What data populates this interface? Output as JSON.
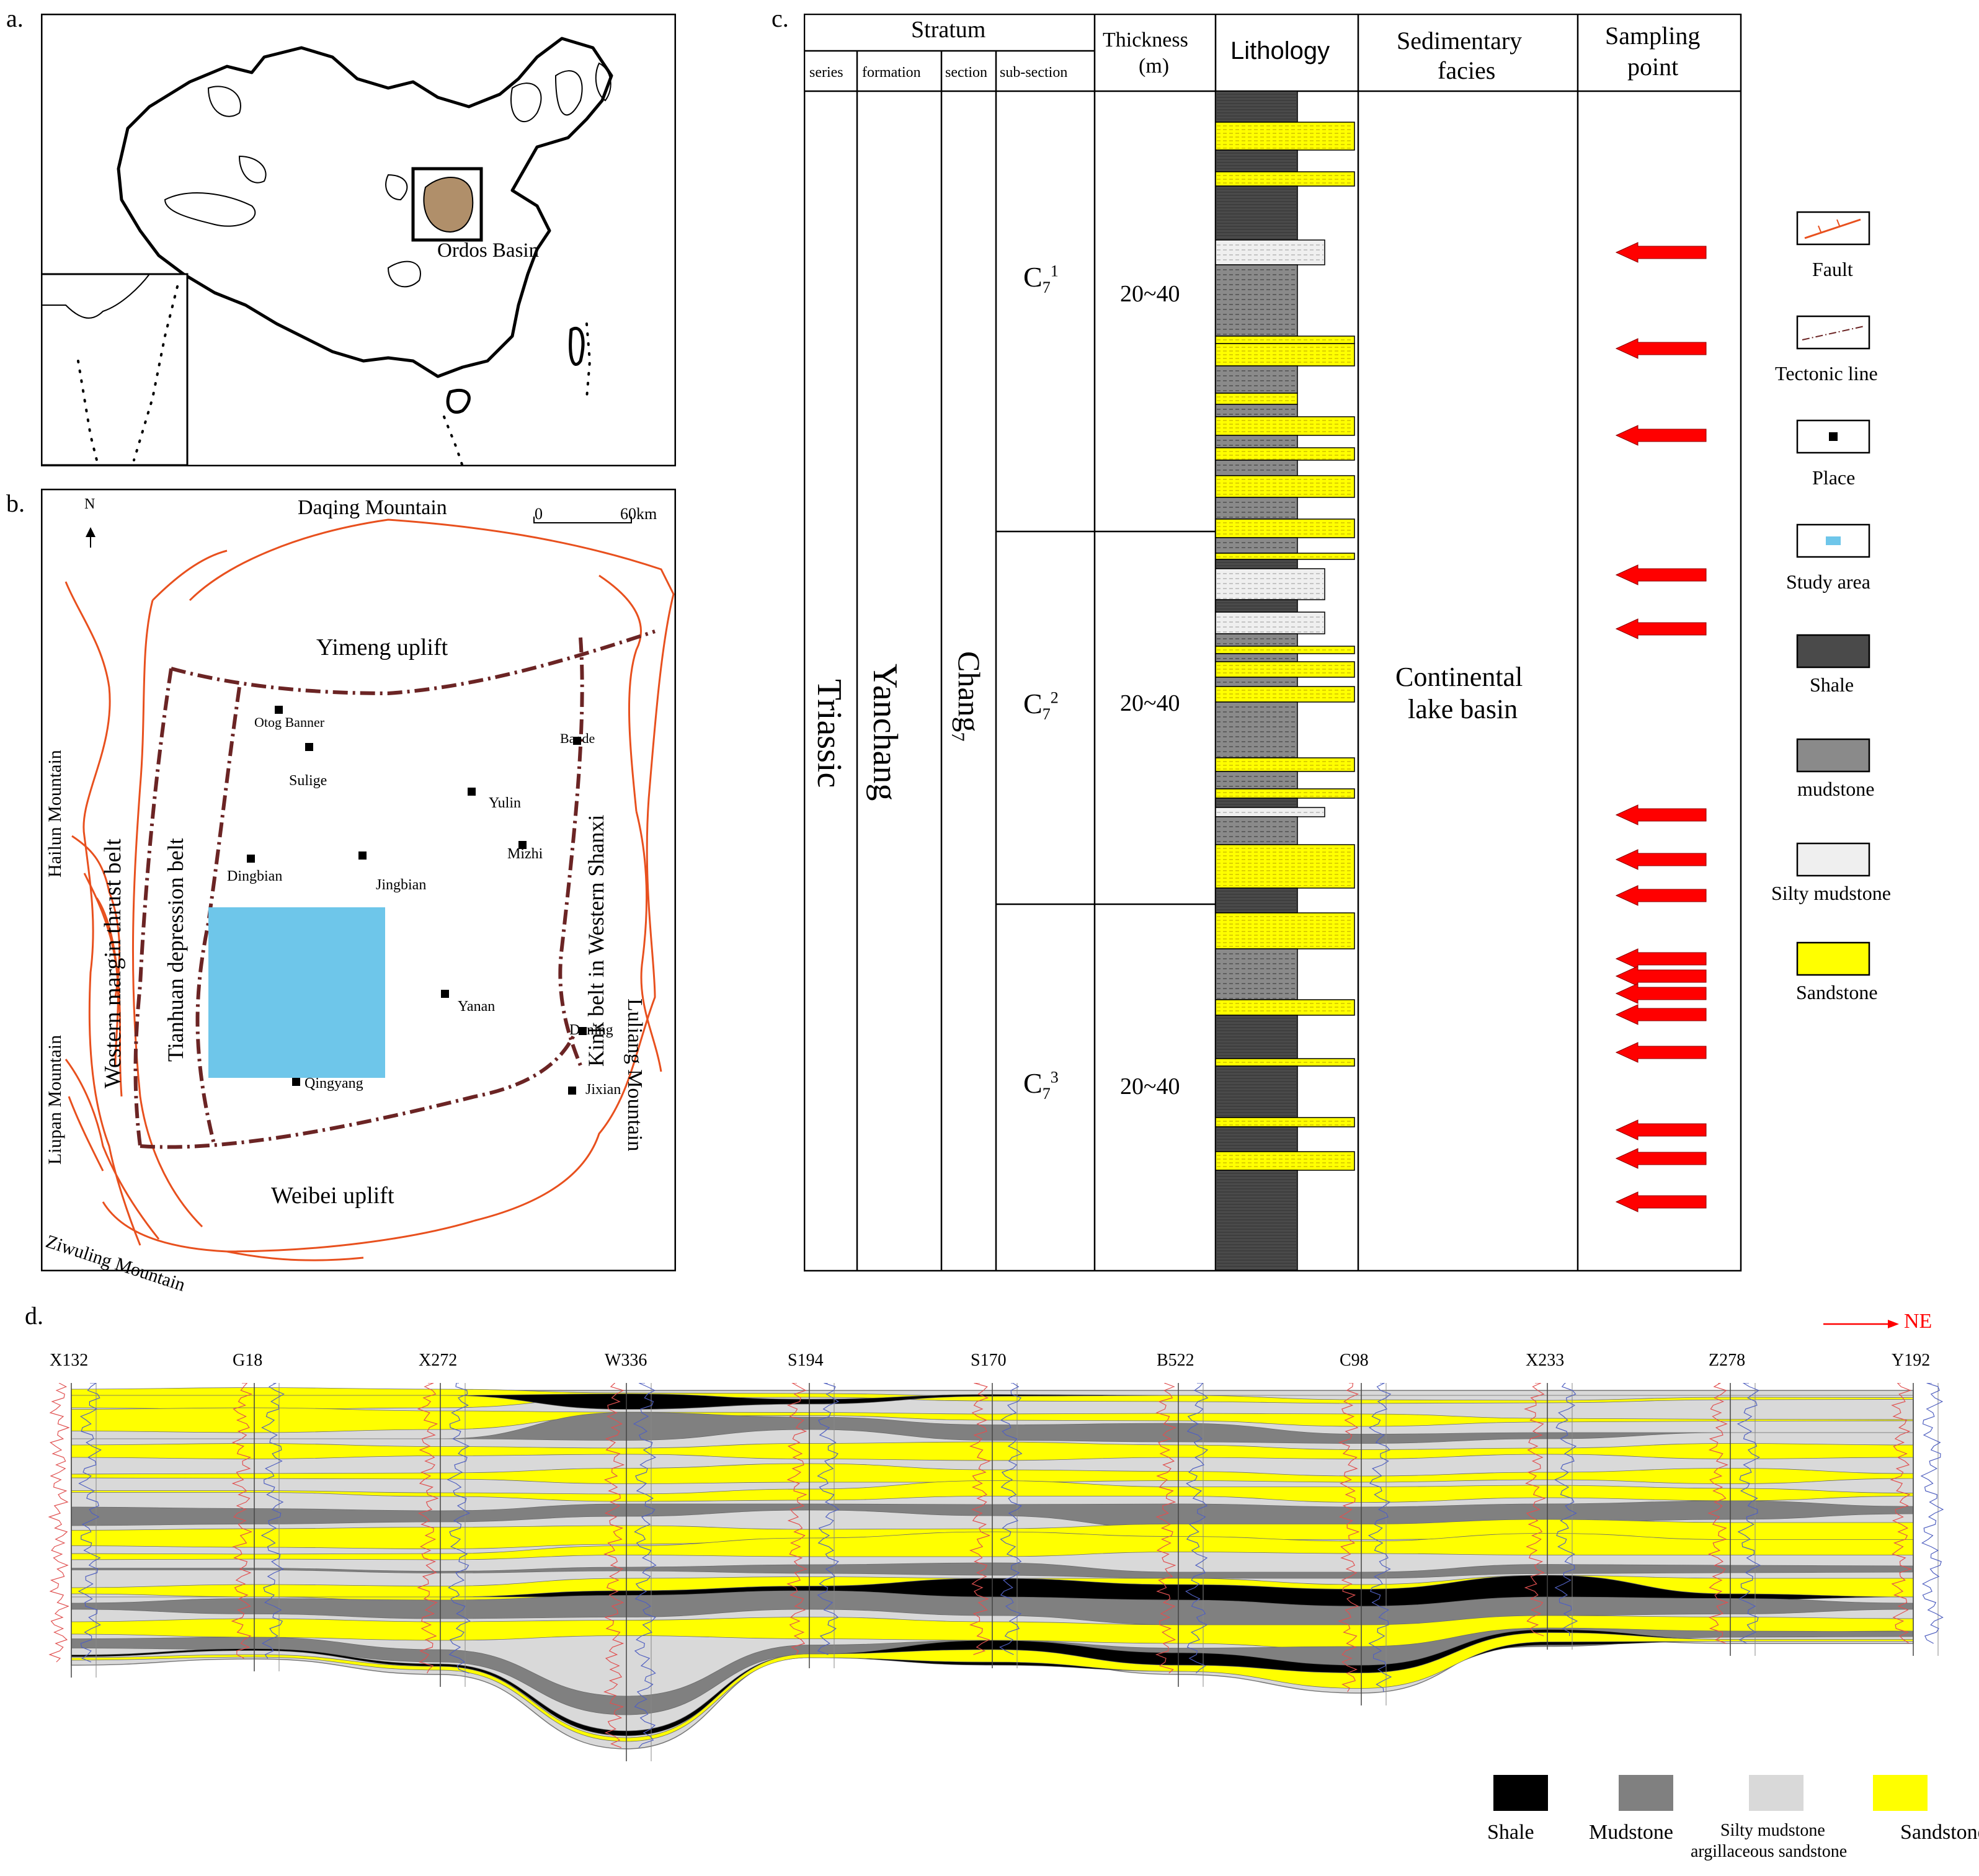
{
  "panels": {
    "a": "a.",
    "b": "b.",
    "c": "c.",
    "d": "d."
  },
  "map_a": {
    "basin_label": "Ordos Basin"
  },
  "map_b": {
    "north": "N",
    "scale": {
      "zero": "0",
      "distance": "60km"
    },
    "regions": {
      "daqing": "Daqing Mountain",
      "yimeng": "Yimeng uplift",
      "weibei": "Weibei uplift",
      "ziwuling": "Ziwuling Mountain",
      "hailun": "Hailun Mountain",
      "liupan": "Liupan Mountain",
      "western_margin": "Western margin thrust belt",
      "tianhuan": "Tianhuan depression belt",
      "kink": "Kink belt in Western Shanxi",
      "luliang": "Luliang Mountain"
    },
    "places": {
      "otog": "Otog Banner",
      "sulige": "Sulige",
      "baode": "Baode",
      "yulin": "Yulin",
      "mizhi": "Mizhi",
      "dingbian": "Dingbian",
      "jingbian": "Jingbian",
      "yanan": "Yanan",
      "daning": "Daning",
      "jixian": "Jixian",
      "qingyang": "Qingyang"
    }
  },
  "column": {
    "headers": {
      "stratum": "Stratum",
      "series": "series",
      "formation": "formation",
      "section": "section",
      "subsection": "sub-section",
      "thickness_1": "Thickness",
      "thickness_2": "(m)",
      "lithology": "Lithology",
      "facies_1": "Sedimentary",
      "facies_2": "facies",
      "sampling_1": "Sampling",
      "sampling_2": "point"
    },
    "series": "Triassic",
    "formation": "Yanchang",
    "section": "Chang",
    "section_sub": "7",
    "subsections": [
      {
        "base": "C",
        "sub": "7",
        "sup": "1",
        "thickness": "20~40"
      },
      {
        "base": "C",
        "sub": "7",
        "sup": "2",
        "thickness": "20~40"
      },
      {
        "base": "C",
        "sub": "7",
        "sup": "3",
        "thickness": "20~40"
      }
    ],
    "facies_1": "Continental",
    "facies_2": "lake basin",
    "lithology_colors": {
      "shale": "#4a4a4a",
      "mudstone": "#8a8a8a",
      "silty": "#efefef",
      "sandstone": "#ffff00"
    },
    "sampling_arrow_color": "#ff0000"
  },
  "legend_c": {
    "fault": "Fault",
    "tectonic": "Tectonic line",
    "place": "Place",
    "study": "Study area",
    "shale": "Shale",
    "mudstone": "mudstone",
    "silty": "Silty mudstone",
    "sandstone": "Sandstone"
  },
  "section": {
    "direction": "NE",
    "wells": [
      "X132",
      "G18",
      "X272",
      "W336",
      "S194",
      "S170",
      "B522",
      "C98",
      "X233",
      "Z278",
      "Y192"
    ],
    "legend": {
      "shale": "Shale",
      "mudstone": "Mudstone",
      "silty_1": "Silty mudstone",
      "silty_2": "argillaceous sandstone",
      "sandstone": "Sandstone"
    },
    "colors": {
      "shale": "#000000",
      "mudstone": "#808080",
      "silty": "#d9d9d9",
      "sandstone": "#ffff00"
    }
  }
}
